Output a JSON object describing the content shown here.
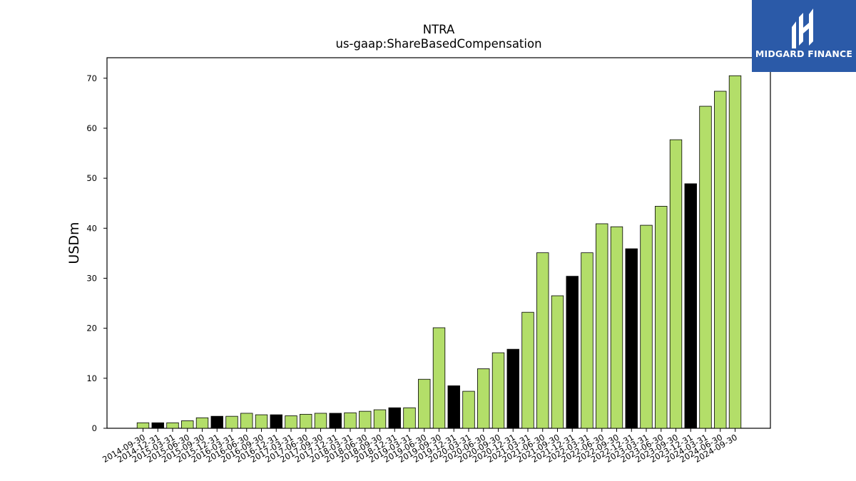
{
  "chart_data": {
    "type": "bar",
    "title": "NTRA",
    "subtitle": "us-gaap:ShareBasedCompensation",
    "xlabel": "",
    "ylabel": "USDm",
    "ylim": [
      0,
      74.1
    ],
    "yticks": [
      0,
      10,
      20,
      30,
      40,
      50,
      60,
      70
    ],
    "grid": false,
    "legend": "none",
    "colors": {
      "default": "#b3de69",
      "highlight": "#000000",
      "edge": "#000000"
    },
    "categories": [
      "2014-09-30",
      "2014-12-31",
      "2015-03-31",
      "2015-06-30",
      "2015-09-30",
      "2015-12-31",
      "2016-03-31",
      "2016-06-30",
      "2016-09-30",
      "2016-12-31",
      "2017-03-31",
      "2017-06-30",
      "2017-09-30",
      "2017-12-31",
      "2018-03-31",
      "2018-06-30",
      "2018-09-30",
      "2018-12-31",
      "2019-03-31",
      "2019-06-30",
      "2019-09-30",
      "2019-12-31",
      "2020-03-31",
      "2020-06-30",
      "2020-09-30",
      "2020-12-31",
      "2021-03-31",
      "2021-06-30",
      "2021-09-30",
      "2021-12-31",
      "2022-03-31",
      "2022-06-30",
      "2022-09-30",
      "2022-12-31",
      "2023-03-31",
      "2023-06-30",
      "2023-09-30",
      "2023-12-31",
      "2024-03-31",
      "2024-06-30",
      "2024-09-30"
    ],
    "values": [
      1.1,
      1.1,
      1.1,
      1.5,
      2.1,
      2.4,
      2.4,
      3.0,
      2.7,
      2.7,
      2.5,
      2.8,
      3.0,
      3.0,
      3.1,
      3.4,
      3.7,
      4.1,
      4.1,
      9.8,
      20.1,
      8.5,
      7.4,
      11.9,
      15.1,
      15.8,
      23.2,
      35.1,
      26.5,
      30.4,
      35.1,
      40.9,
      40.3,
      35.9,
      40.6,
      44.4,
      57.7,
      48.9,
      64.4,
      67.4,
      70.5
    ],
    "highlight": [
      false,
      true,
      false,
      false,
      false,
      true,
      false,
      false,
      false,
      true,
      false,
      false,
      false,
      true,
      false,
      false,
      false,
      true,
      false,
      false,
      false,
      true,
      false,
      false,
      false,
      true,
      false,
      false,
      false,
      true,
      false,
      false,
      false,
      true,
      false,
      false,
      false,
      true,
      false,
      false,
      false
    ]
  },
  "logo": {
    "text": "MIDGARD FINANCE",
    "icon": "midgard-logo-icon"
  }
}
